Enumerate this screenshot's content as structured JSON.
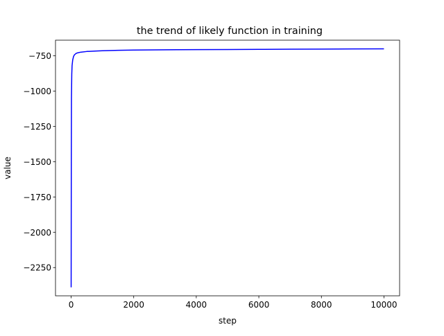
{
  "chart_data": {
    "type": "line",
    "title": "the trend of likely function in training",
    "xlabel": "step",
    "ylabel": "value",
    "xlim": [
      -500,
      10500
    ],
    "ylim": [
      -2450,
      -640
    ],
    "xticks": [
      0,
      2000,
      4000,
      6000,
      8000,
      10000
    ],
    "yticks": [
      -2250,
      -2000,
      -1750,
      -1500,
      -1250,
      -1000,
      -750
    ],
    "xtick_labels": [
      "0",
      "2000",
      "4000",
      "6000",
      "8000",
      "10000"
    ],
    "ytick_labels": [
      "−2250",
      "−2000",
      "−1750",
      "−1500",
      "−1250",
      "−1000",
      "−750"
    ],
    "grid": false,
    "series": [
      {
        "color": "#0000ff",
        "x": [
          0,
          5,
          10,
          20,
          30,
          50,
          75,
          100,
          150,
          200,
          300,
          500,
          750,
          1000,
          1500,
          2000,
          3000,
          4000,
          5000,
          6000,
          7000,
          8000,
          9000,
          10000
        ],
        "y": [
          -2390,
          -1500,
          -1050,
          -880,
          -820,
          -780,
          -757,
          -745,
          -735,
          -730,
          -725,
          -720,
          -717,
          -715,
          -712,
          -710,
          -708,
          -707,
          -706,
          -705,
          -704,
          -703,
          -702,
          -701
        ]
      }
    ]
  }
}
